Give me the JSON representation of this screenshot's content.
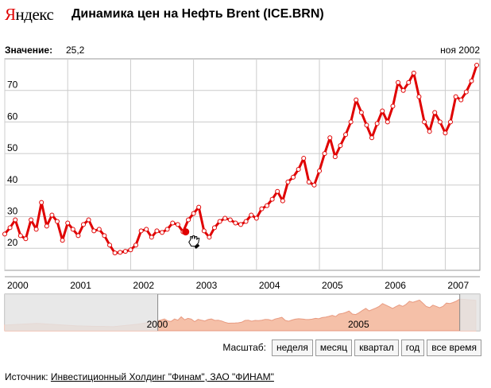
{
  "header": {
    "logo_first": "Я",
    "logo_rest": "ндекс",
    "title": "Динамика цен на Нефть Brent (ICE.BRN)"
  },
  "value_readout": {
    "label": "Значение:",
    "value": "25,2",
    "date": "ноя 2002"
  },
  "scale": {
    "label": "Масштаб:",
    "buttons": [
      "неделя",
      "месяц",
      "квартал",
      "год",
      "все время"
    ]
  },
  "source": {
    "label": "Источник:",
    "link_text": "Инвестиционный Холдинг \"Финам\", ЗАО \"ФИНАМ\""
  },
  "overview": {
    "labels": [
      {
        "text": "2000",
        "year": 2000
      },
      {
        "text": "2005",
        "year": 2005
      }
    ],
    "selection": {
      "from": 2000.0,
      "to": 2007.5
    }
  },
  "colors": {
    "series": "#e00000",
    "marker_fill": "#ffffff",
    "grid": "#cccccc",
    "overview_fill": "#f5c0a8",
    "overview_line": "#e89a80",
    "overview_mask": "#e4e4e4"
  },
  "chart_data": {
    "type": "line",
    "title": "Динамика цен на Нефть Brent (ICE.BRN)",
    "xlabel": "",
    "ylabel": "",
    "xlim": [
      2000.0,
      2007.55
    ],
    "ylim": [
      13,
      80
    ],
    "yticks": [
      20,
      30,
      40,
      50,
      60,
      70
    ],
    "xticks": [
      2000,
      2001,
      2002,
      2003,
      2004,
      2005,
      2006,
      2007
    ],
    "grid": true,
    "highlight": {
      "x": 2002.875,
      "y": 25.2
    },
    "series": [
      {
        "x": [
          2000.0,
          2000.083,
          2000.167,
          2000.25,
          2000.333,
          2000.417,
          2000.5,
          2000.583,
          2000.667,
          2000.75,
          2000.833,
          2000.917,
          2001.0,
          2001.083,
          2001.167,
          2001.25,
          2001.333,
          2001.417,
          2001.5,
          2001.583,
          2001.667,
          2001.75,
          2001.833,
          2001.917,
          2002.0,
          2002.083,
          2002.167,
          2002.25,
          2002.333,
          2002.417,
          2002.5,
          2002.583,
          2002.667,
          2002.75,
          2002.833,
          2002.917,
          2003.0,
          2003.083,
          2003.167,
          2003.25,
          2003.333,
          2003.417,
          2003.5,
          2003.583,
          2003.667,
          2003.75,
          2003.833,
          2003.917,
          2004.0,
          2004.083,
          2004.167,
          2004.25,
          2004.333,
          2004.417,
          2004.5,
          2004.583,
          2004.667,
          2004.75,
          2004.833,
          2004.917,
          2005.0,
          2005.083,
          2005.167,
          2005.25,
          2005.333,
          2005.417,
          2005.5,
          2005.583,
          2005.667,
          2005.75,
          2005.833,
          2005.917,
          2006.0,
          2006.083,
          2006.167,
          2006.25,
          2006.333,
          2006.417,
          2006.5,
          2006.583,
          2006.667,
          2006.75,
          2006.833,
          2006.917,
          2007.0,
          2007.083,
          2007.167,
          2007.25,
          2007.333,
          2007.417,
          2007.5
        ],
        "y": [
          24.5,
          26.5,
          29.0,
          24.0,
          23.0,
          29.0,
          26.0,
          34.5,
          27.0,
          30.5,
          28.5,
          22.5,
          28.0,
          26.0,
          24.0,
          27.5,
          29.0,
          25.5,
          26.0,
          24.0,
          21.0,
          18.5,
          18.7,
          19.0,
          19.5,
          21.0,
          25.5,
          26.0,
          23.5,
          25.5,
          25.0,
          26.0,
          28.0,
          27.5,
          25.2,
          29.0,
          31.0,
          33.0,
          25.5,
          23.5,
          26.5,
          28.5,
          29.5,
          29.0,
          28.0,
          27.5,
          28.5,
          30.5,
          29.5,
          32.5,
          33.5,
          35.5,
          38.0,
          35.0,
          41.0,
          42.5,
          45.0,
          48.5,
          41.0,
          40.0,
          44.5,
          50.0,
          55.0,
          49.0,
          52.5,
          56.0,
          60.0,
          67.0,
          63.0,
          59.0,
          55.0,
          59.5,
          63.5,
          60.0,
          65.0,
          72.5,
          70.0,
          72.5,
          75.5,
          68.0,
          60.0,
          57.0,
          63.0,
          60.0,
          56.5,
          60.0,
          68.0,
          67.0,
          69.5,
          73.0,
          78.0
        ]
      }
    ]
  }
}
